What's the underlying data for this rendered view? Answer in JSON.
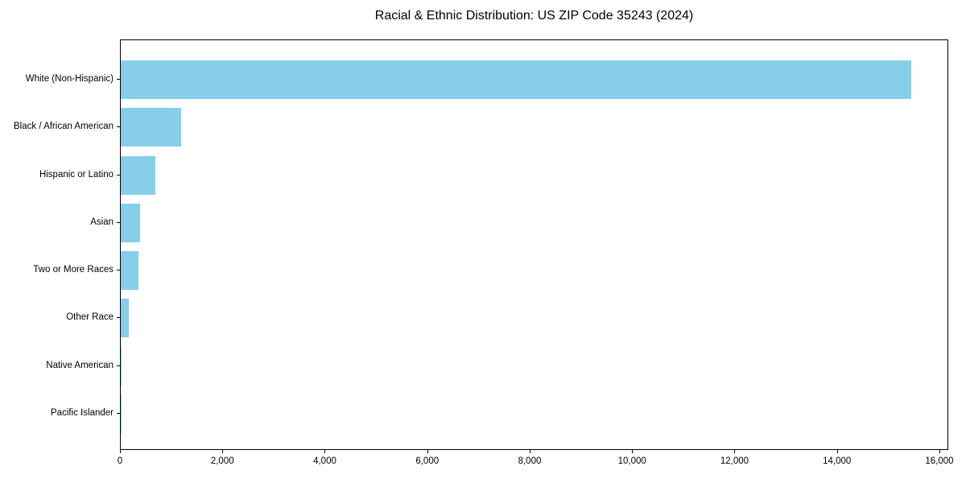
{
  "chart_data": {
    "type": "bar",
    "orientation": "horizontal",
    "title": "Racial & Ethnic Distribution: US ZIP Code 35243 (2024)",
    "categories": [
      "White (Non-Hispanic)",
      "Black / African American",
      "Hispanic or Latino",
      "Asian",
      "Two or More Races",
      "Other Race",
      "Native American",
      "Pacific Islander"
    ],
    "values": [
      15440,
      1180,
      675,
      380,
      350,
      155,
      20,
      10
    ],
    "xlabel": "",
    "ylabel": "",
    "xlim": [
      0,
      16173
    ],
    "x_ticks": [
      0,
      2000,
      4000,
      6000,
      8000,
      10000,
      12000,
      14000,
      16000
    ],
    "x_tick_labels": [
      "0",
      "2,000",
      "4,000",
      "6,000",
      "8,000",
      "10,000",
      "12,000",
      "14,000",
      "16,000"
    ],
    "bar_color": "#87CEEB",
    "grid": false,
    "legend": null,
    "background_color": "#ffffff",
    "axis_color": "#000000"
  }
}
